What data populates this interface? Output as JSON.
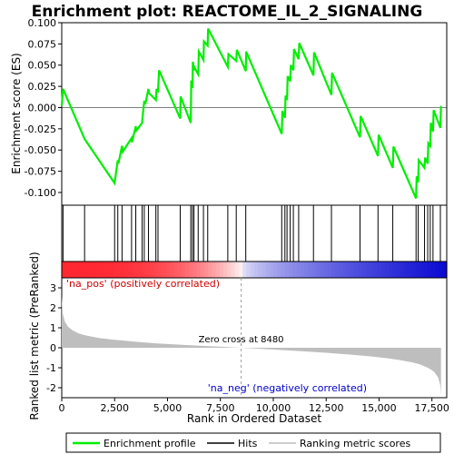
{
  "chart_data": {
    "type": "line",
    "title": "Enrichment plot: REACTOME_IL_2_SIGNALING",
    "colors": {
      "profile": "#00ee00",
      "hits": "#000000",
      "metric_fill": "#bebebe",
      "zero_line": "#a0a0a0",
      "pos_label": "#cc0000",
      "neg_label": "#0000cc"
    },
    "top_panel": {
      "ylabel": "Enrichment score (ES)",
      "ylim": [
        -0.115,
        0.1
      ],
      "yticks": [
        "0.100",
        "0.075",
        "0.050",
        "0.025",
        "0.000",
        "-0.025",
        "-0.050",
        "-0.075",
        "-0.100"
      ],
      "ytick_values": [
        0.1,
        0.075,
        0.05,
        0.025,
        0.0,
        -0.025,
        -0.05,
        -0.075,
        -0.1
      ],
      "series": [
        {
          "name": "Enrichment profile",
          "x": [
            0,
            60,
            1080,
            2500,
            2520,
            2650,
            2680,
            2850,
            2880,
            3300,
            3320,
            3500,
            3530,
            3800,
            3820,
            3900,
            3950,
            4100,
            4130,
            4450,
            4480,
            4550,
            4600,
            5600,
            5620,
            6100,
            6120,
            6180,
            6200,
            6250,
            6280,
            6450,
            6480,
            6700,
            6720,
            6900,
            6920,
            7850,
            7880,
            8250,
            8280,
            8700,
            8720,
            10400,
            10430,
            10550,
            10580,
            10650,
            10680,
            10800,
            10830,
            10950,
            10980,
            11200,
            11230,
            11900,
            11930,
            12750,
            12780,
            14100,
            14130,
            14950,
            14980,
            15650,
            15680,
            16750,
            16780,
            16850,
            16880,
            17150,
            17180,
            17300,
            17330,
            17420,
            17450,
            17550,
            17580,
            17900,
            17930
          ],
          "y": [
            0.002,
            0.022,
            -0.037,
            -0.089,
            -0.085,
            -0.062,
            -0.066,
            -0.045,
            -0.052,
            -0.036,
            -0.041,
            -0.022,
            -0.027,
            -0.018,
            -0.011,
            0.008,
            0.004,
            0.022,
            0.017,
            0.009,
            0.022,
            0.018,
            0.044,
            -0.013,
            0.013,
            -0.018,
            0.032,
            0.023,
            0.054,
            0.044,
            0.047,
            0.039,
            0.066,
            0.056,
            0.078,
            0.073,
            0.093,
            0.048,
            0.063,
            0.055,
            0.068,
            0.043,
            0.066,
            -0.031,
            -0.004,
            -0.012,
            0.014,
            0.009,
            0.037,
            0.031,
            0.05,
            0.044,
            0.069,
            0.057,
            0.076,
            0.038,
            0.065,
            0.015,
            0.041,
            -0.035,
            -0.01,
            -0.057,
            -0.032,
            -0.071,
            -0.046,
            -0.107,
            -0.081,
            -0.088,
            -0.062,
            -0.071,
            -0.059,
            -0.066,
            -0.042,
            -0.045,
            -0.018,
            -0.028,
            -0.003,
            -0.024,
            0.002
          ]
        }
      ]
    },
    "hits": [
      60,
      1080,
      2500,
      2650,
      2850,
      3300,
      3500,
      3800,
      3900,
      4100,
      4450,
      4550,
      5600,
      6100,
      6180,
      6250,
      6450,
      6700,
      6900,
      7850,
      8250,
      8700,
      10400,
      10550,
      10650,
      10800,
      10950,
      11200,
      11900,
      12750,
      14100,
      14950,
      15650,
      16750,
      16850,
      17150,
      17300,
      17420,
      17550,
      17900
    ],
    "bottom_panel": {
      "ylabel": "Ranked list metric (PreRanked)",
      "xlabel": "Rank in Ordered Dataset",
      "ylim": [
        -2.5,
        3.5
      ],
      "yticks": [
        "3",
        "2",
        "1",
        "0",
        "-1",
        "-2"
      ],
      "ytick_values": [
        3,
        2,
        1,
        0,
        -1,
        -2
      ],
      "metric_x": [
        0,
        50,
        150,
        300,
        500,
        800,
        1200,
        1800,
        2500,
        3500,
        4500,
        5500,
        6500,
        7500,
        8480,
        9500,
        10500,
        11500,
        12500,
        13500,
        14500,
        15500,
        16000,
        16500,
        16900,
        17200,
        17400,
        17600,
        17800,
        17900,
        17930
      ],
      "metric_y": [
        2.6,
        1.7,
        1.3,
        1.05,
        0.88,
        0.72,
        0.6,
        0.48,
        0.4,
        0.3,
        0.22,
        0.16,
        0.1,
        0.05,
        0.0,
        -0.06,
        -0.12,
        -0.18,
        -0.25,
        -0.33,
        -0.42,
        -0.54,
        -0.62,
        -0.72,
        -0.82,
        -0.95,
        -1.05,
        -1.2,
        -1.5,
        -1.9,
        -2.4
      ],
      "zero_cross_label": "Zero cross at 8480",
      "zero_cross_x": 8480,
      "pos_label": "'na_pos' (positively correlated)",
      "neg_label": "'na_neg' (negatively correlated)"
    },
    "xaxis": {
      "xlim": [
        0,
        18200
      ],
      "xticks": [
        "0",
        "2,500",
        "5,000",
        "7,500",
        "10,000",
        "12,500",
        "15,000",
        "17,500"
      ],
      "xtick_values": [
        0,
        2500,
        5000,
        7500,
        10000,
        12500,
        15000,
        17500
      ]
    },
    "legend": {
      "placement": "bottom",
      "entries": [
        "Enrichment profile",
        "Hits",
        "Ranking metric scores"
      ]
    }
  }
}
